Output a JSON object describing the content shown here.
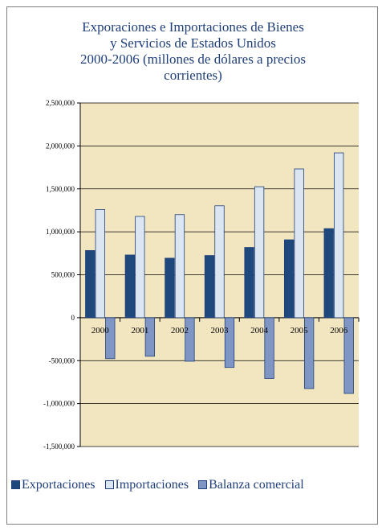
{
  "chart_data": {
    "type": "bar",
    "title_lines": [
      "Exporaciones e Importaciones de Bienes",
      "y Servicios de Estados Unidos",
      "2000-2006 (millones de dólares a precios",
      "corrientes)"
    ],
    "categories": [
      "2000",
      "2001",
      "2002",
      "2003",
      "2004",
      "2005",
      "2006"
    ],
    "series": [
      {
        "name": "Exportaciones",
        "color": "#1f497d",
        "values": [
          782000,
          730000,
          693000,
          724000,
          818000,
          907000,
          1037000
        ]
      },
      {
        "name": "Importaciones",
        "color": "#dce6f2",
        "values": [
          1259000,
          1179000,
          1200000,
          1303000,
          1525000,
          1732000,
          1919000
        ]
      },
      {
        "name": "Balanza comercial",
        "color": "#7f96c4",
        "values": [
          -477000,
          -449000,
          -507000,
          -579000,
          -708000,
          -825000,
          -882000
        ]
      }
    ],
    "ylim": [
      -1500000,
      2500000
    ],
    "y_ticks": [
      "2,500,000",
      "2,000,000",
      "1,500,000",
      "1,000,000",
      "500,000",
      "0",
      "-500,000",
      "-1,000,000",
      "-1,500,000"
    ],
    "y_tick_values": [
      2500000,
      2000000,
      1500000,
      1000000,
      500000,
      0,
      -500000,
      -1000000,
      -1500000
    ],
    "plot_background": "#f2e6c0",
    "gridlines": true,
    "legend_position": "bottom"
  }
}
